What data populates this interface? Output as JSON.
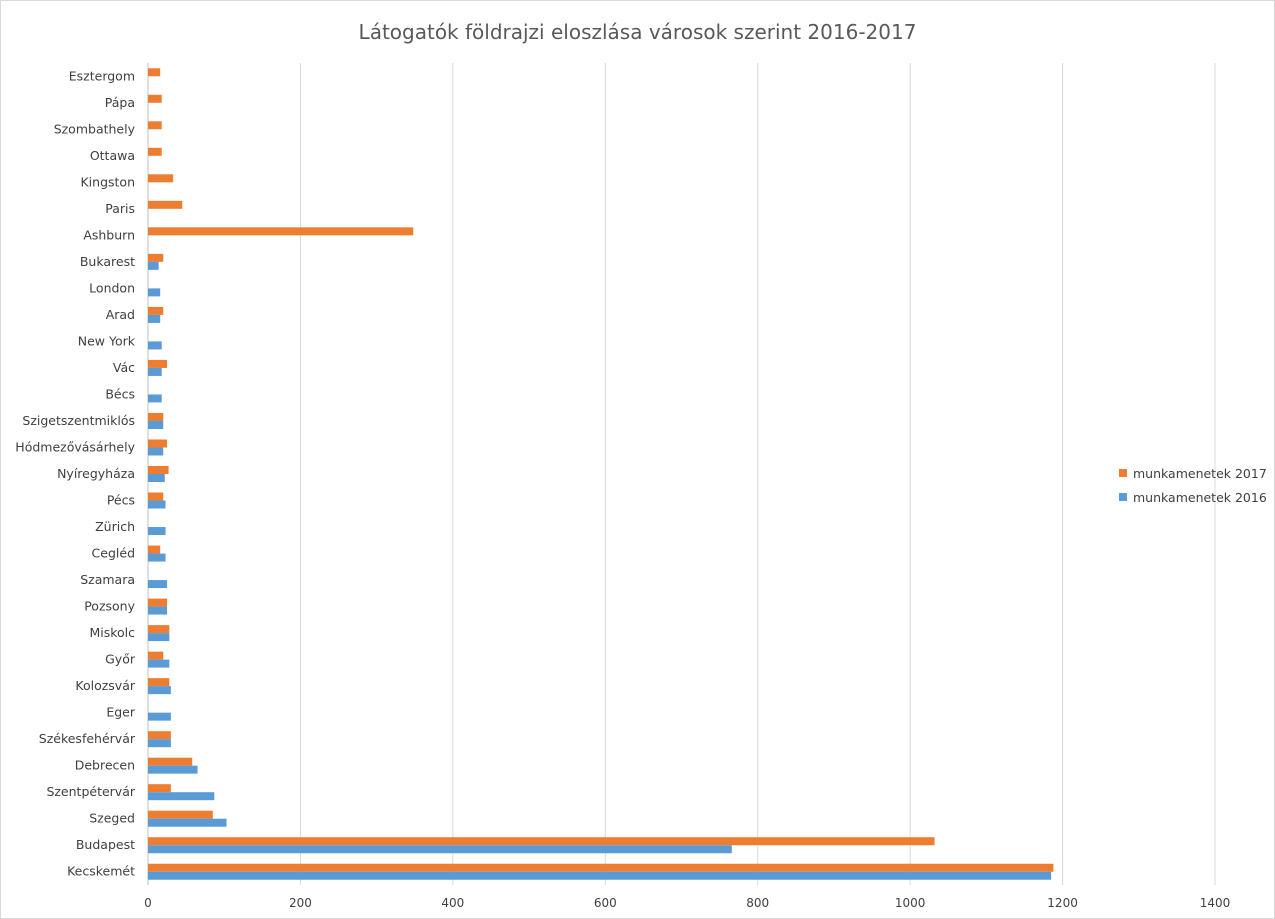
{
  "chart_data": {
    "type": "bar",
    "orientation": "horizontal",
    "title": "Látogatók földrajzi eloszlása városok szerint 2016-2017",
    "categories": [
      "Esztergom",
      "Pápa",
      "Szombathely",
      "Ottawa",
      "Kingston",
      "Paris",
      "Ashburn",
      "Bukarest",
      "London",
      "Arad",
      "New York",
      "Vác",
      "Bécs",
      "Szigetszentmiklós",
      "Hódmezővásárhely",
      "Nyíregyháza",
      "Pécs",
      "Zürich",
      "Cegléd",
      "Szamara",
      "Pozsony",
      "Miskolc",
      "Győr",
      "Kolozsvár",
      "Eger",
      "Székesfehérvár",
      "Debrecen",
      "Szentpétervár",
      "Szeged",
      "Budapest",
      "Kecskemét"
    ],
    "series": [
      {
        "name": "munkamenetek 2017",
        "color": "#ed7d31",
        "values": [
          16,
          18,
          18,
          18,
          33,
          45,
          348,
          20,
          0,
          20,
          0,
          25,
          0,
          20,
          25,
          27,
          20,
          0,
          16,
          0,
          25,
          28,
          20,
          28,
          0,
          30,
          58,
          30,
          85,
          1032,
          1188
        ]
      },
      {
        "name": "munkamenetek 2016",
        "color": "#5b9bd5",
        "values": [
          0,
          0,
          0,
          0,
          0,
          0,
          0,
          14,
          16,
          16,
          18,
          18,
          18,
          20,
          20,
          22,
          23,
          23,
          23,
          25,
          25,
          28,
          28,
          30,
          30,
          30,
          65,
          87,
          103,
          766,
          1185
        ]
      }
    ],
    "xlim": [
      0,
      1400
    ],
    "xticks": [
      0,
      200,
      400,
      600,
      800,
      1000,
      1200,
      1400
    ],
    "grid": true,
    "legend_position": "right"
  }
}
